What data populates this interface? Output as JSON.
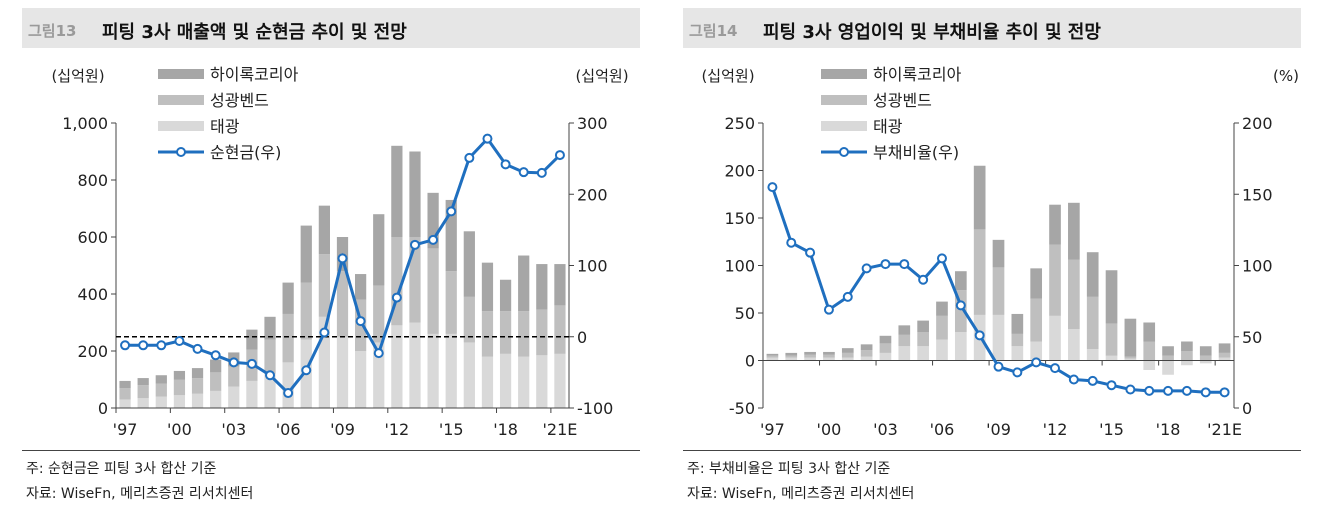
{
  "colors": {
    "hairy": "#a6a6a6",
    "sung": "#bfbfbf",
    "tae": "#d9d9d9",
    "line": "#1f6fbf",
    "dash": "#000000"
  },
  "charts": [
    {
      "fig_num": "그림13",
      "title": "피팅 3사 매출액 및 순현금 추이 및 전망",
      "note": "주: 순현금은 피팅 3사 합산 기준",
      "source": "자료: WiseFn, 메리츠증권 리서치센터",
      "unit_left": "(십억원)",
      "unit_right": "(십억원)",
      "legend": [
        "하이록코리아",
        "성광벤드",
        "태광",
        "순현금(우)"
      ]
    },
    {
      "fig_num": "그림14",
      "title": "피팅 3사 영업이익 및 부채비율 추이 및 전망",
      "note": "주: 부채비율은 피팅 3사 합산 기준",
      "source": "자료: WiseFn, 메리츠증권 리서치센터",
      "unit_left": "(십억원)",
      "unit_right": "(%)",
      "legend": [
        "하이록코리아",
        "성광벤드",
        "태광",
        "부채비율(우)"
      ]
    }
  ],
  "chart_data": [
    {
      "type": "bar",
      "stacked": true,
      "x": [
        "'97",
        "'98",
        "'99",
        "'00",
        "'01",
        "'02",
        "'03",
        "'04",
        "'05",
        "'06",
        "'07",
        "'08",
        "'09",
        "'10",
        "'11",
        "'12",
        "'13",
        "'14",
        "'15",
        "'16",
        "'17",
        "'18",
        "'19",
        "'20",
        "'21E"
      ],
      "x_tick_labels": [
        "'97",
        "'00",
        "'03",
        "'06",
        "'09",
        "'12",
        "'15",
        "'18",
        "'21E"
      ],
      "series": [
        {
          "name": "태광",
          "values": [
            30,
            35,
            40,
            45,
            50,
            60,
            75,
            95,
            120,
            160,
            240,
            320,
            250,
            200,
            230,
            290,
            300,
            260,
            260,
            230,
            180,
            190,
            180,
            185,
            190
          ]
        },
        {
          "name": "성광벤드",
          "values": [
            40,
            45,
            45,
            55,
            55,
            65,
            70,
            110,
            120,
            170,
            200,
            220,
            230,
            180,
            200,
            310,
            300,
            300,
            220,
            160,
            160,
            150,
            160,
            160,
            170
          ]
        },
        {
          "name": "하이록코리아",
          "values": [
            25,
            25,
            30,
            30,
            35,
            45,
            50,
            70,
            80,
            110,
            200,
            170,
            120,
            90,
            250,
            320,
            300,
            195,
            250,
            230,
            170,
            110,
            195,
            160,
            145
          ]
        },
        {
          "name": "순현금(우)",
          "axis": "right",
          "values": [
            -12,
            -12,
            -12,
            -6,
            -17,
            -26,
            -36,
            -38,
            -54,
            -79,
            -47,
            6,
            110,
            22,
            -23,
            55,
            129,
            136,
            176,
            251,
            278,
            242,
            231,
            230,
            255
          ]
        }
      ],
      "ylim": [
        0,
        1000
      ],
      "y_ticks": [
        0,
        200,
        400,
        600,
        800,
        1000
      ],
      "y2lim": [
        -100,
        300
      ],
      "y2_ticks": [
        -100,
        0,
        100,
        200,
        300
      ],
      "reference_line": {
        "axis": "right",
        "value": 0,
        "style": "dashed"
      },
      "legend_position": "top-left"
    },
    {
      "type": "bar",
      "stacked": true,
      "x": [
        "'97",
        "'98",
        "'99",
        "'00",
        "'01",
        "'02",
        "'03",
        "'04",
        "'05",
        "'06",
        "'07",
        "'08",
        "'09",
        "'10",
        "'11",
        "'12",
        "'13",
        "'14",
        "'15",
        "'16",
        "'17",
        "'18",
        "'19",
        "'20",
        "'21E"
      ],
      "x_tick_labels": [
        "'97",
        "'00",
        "'03",
        "'06",
        "'09",
        "'12",
        "'15",
        "'18",
        "'21E"
      ],
      "series": [
        {
          "name": "태광",
          "values": [
            3,
            3,
            3,
            3,
            3,
            4,
            8,
            15,
            15,
            22,
            30,
            48,
            48,
            15,
            20,
            47,
            33,
            12,
            5,
            2,
            -10,
            -15,
            -5,
            -3,
            3
          ]
        },
        {
          "name": "성광벤드",
          "values": [
            2,
            2,
            3,
            3,
            5,
            7,
            10,
            12,
            15,
            25,
            44,
            90,
            50,
            13,
            45,
            75,
            73,
            55,
            34,
            2,
            20,
            5,
            10,
            5,
            5
          ]
        },
        {
          "name": "하이록코리아",
          "values": [
            2,
            3,
            3,
            3,
            5,
            6,
            8,
            10,
            12,
            15,
            20,
            67,
            29,
            21,
            32,
            42,
            60,
            47,
            56,
            40,
            20,
            10,
            10,
            10,
            10
          ]
        },
        {
          "name": "부채비율(우)",
          "axis": "right",
          "values": [
            155,
            116,
            109,
            69,
            78,
            98,
            101,
            101,
            90,
            105,
            72,
            51,
            29,
            25,
            32,
            28,
            20,
            19,
            16,
            13,
            12,
            12,
            12,
            11,
            11
          ]
        }
      ],
      "ylim": [
        -50,
        250
      ],
      "y_ticks": [
        -50,
        0,
        50,
        100,
        150,
        200,
        250
      ],
      "y2lim": [
        0,
        200
      ],
      "y2_ticks": [
        0,
        50,
        100,
        150,
        200
      ],
      "legend_position": "top-left"
    }
  ]
}
